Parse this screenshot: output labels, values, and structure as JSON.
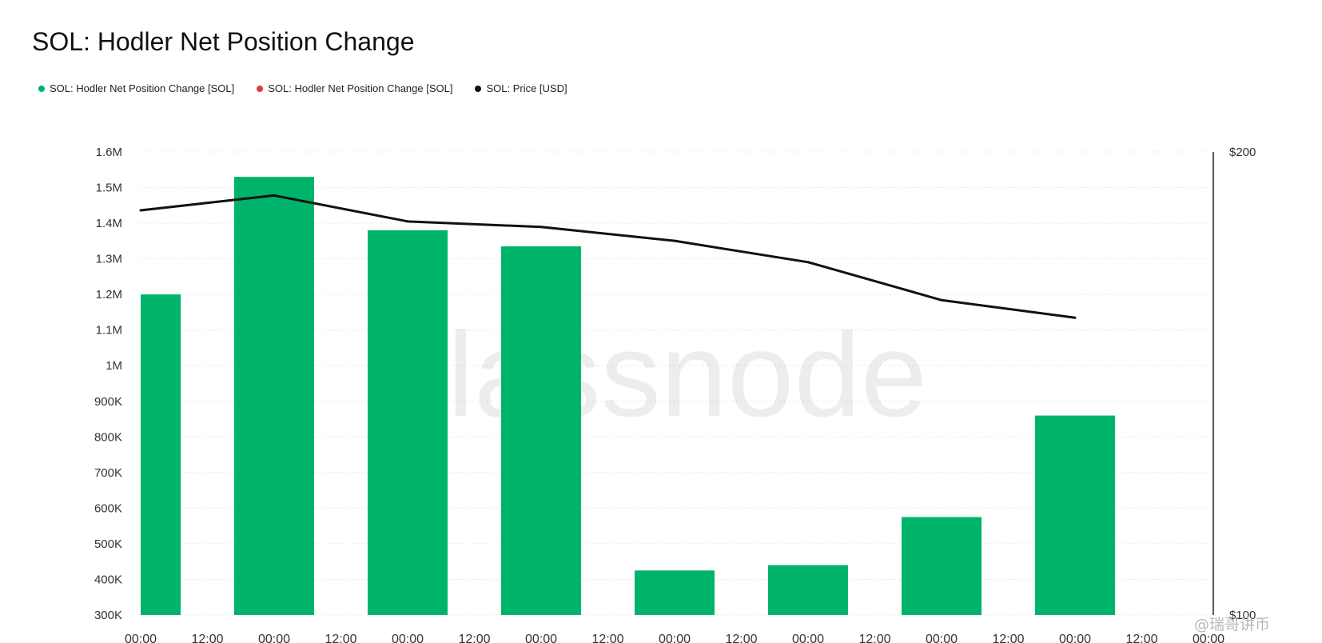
{
  "title": "SOL: Hodler Net Position Change",
  "legend": [
    {
      "label": "SOL: Hodler Net Position Change [SOL]",
      "color": "#00b36b"
    },
    {
      "label": "SOL: Hodler Net Position Change [SOL]",
      "color": "#e03a3a"
    },
    {
      "label": "SOL: Price [USD]",
      "color": "#111111"
    }
  ],
  "watermark": "lassnode",
  "brand_watermark": "@瑞哥讲币",
  "chart_data": {
    "type": "bar",
    "title": "SOL: Hodler Net Position Change",
    "x_ticks": [
      "00:00",
      "12:00",
      "00:00",
      "12:00",
      "00:00",
      "12:00",
      "00:00",
      "12:00",
      "00:00",
      "12:00",
      "00:00",
      "12:00",
      "00:00",
      "12:00",
      "00:00",
      "12:00",
      "00:00"
    ],
    "y_left": {
      "min": 300000,
      "max": 1600000,
      "ticks": [
        {
          "value": 1600000,
          "label": "1.6M"
        },
        {
          "value": 1500000,
          "label": "1.5M"
        },
        {
          "value": 1400000,
          "label": "1.4M"
        },
        {
          "value": 1300000,
          "label": "1.3M"
        },
        {
          "value": 1200000,
          "label": "1.2M"
        },
        {
          "value": 1100000,
          "label": "1.1M"
        },
        {
          "value": 1000000,
          "label": "1M"
        },
        {
          "value": 900000,
          "label": "900K"
        },
        {
          "value": 800000,
          "label": "800K"
        },
        {
          "value": 700000,
          "label": "700K"
        },
        {
          "value": 600000,
          "label": "600K"
        },
        {
          "value": 500000,
          "label": "500K"
        },
        {
          "value": 400000,
          "label": "400K"
        },
        {
          "value": 300000,
          "label": "300K"
        }
      ]
    },
    "y_right": {
      "min": 100,
      "max": 200,
      "ticks": [
        {
          "value": 200,
          "label": "$200"
        },
        {
          "value": 100,
          "label": "$100"
        }
      ]
    },
    "grid": true,
    "series": [
      {
        "name": "SOL: Hodler Net Position Change [SOL]",
        "type": "bar",
        "color": "#00b36b",
        "points": [
          {
            "tick_index": 0,
            "value": 1200000
          },
          {
            "tick_index": 2,
            "value": 1530000
          },
          {
            "tick_index": 4,
            "value": 1380000
          },
          {
            "tick_index": 6,
            "value": 1335000
          },
          {
            "tick_index": 8,
            "value": 425000
          },
          {
            "tick_index": 10,
            "value": 440000
          },
          {
            "tick_index": 12,
            "value": 575000
          },
          {
            "tick_index": 14,
            "value": 860000
          }
        ]
      },
      {
        "name": "SOL: Price [USD]",
        "type": "line",
        "axis": "right",
        "color": "#111111",
        "points": [
          {
            "tick_index": 0,
            "value": 187.4
          },
          {
            "tick_index": 2,
            "value": 190.6
          },
          {
            "tick_index": 4,
            "value": 185.0
          },
          {
            "tick_index": 6,
            "value": 183.8
          },
          {
            "tick_index": 8,
            "value": 180.8
          },
          {
            "tick_index": 10,
            "value": 176.2
          },
          {
            "tick_index": 12,
            "value": 168.0
          },
          {
            "tick_index": 14,
            "value": 164.2
          }
        ]
      }
    ]
  }
}
